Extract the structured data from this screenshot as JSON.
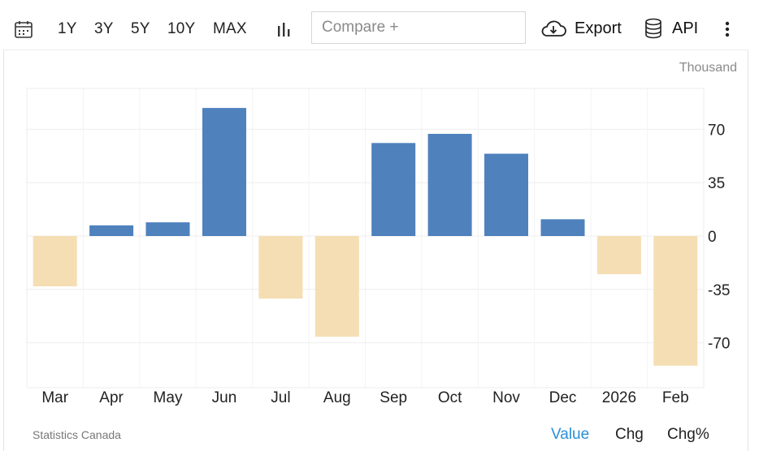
{
  "toolbar": {
    "calendar_icon": "calendar-icon",
    "ranges": [
      "1Y",
      "3Y",
      "5Y",
      "10Y",
      "MAX"
    ],
    "chart_type_icon": "bar-chart-icon",
    "compare_placeholder": "Compare +",
    "export_label": "Export",
    "export_icon": "cloud-download-icon",
    "api_label": "API",
    "api_icon": "database-icon",
    "more_icon": "more-vertical-icon"
  },
  "chart_data": {
    "type": "bar",
    "categories": [
      "Mar",
      "Apr",
      "May",
      "Jun",
      "Jul",
      "Aug",
      "Sep",
      "Oct",
      "Nov",
      "Dec",
      "2026",
      "Feb"
    ],
    "values": [
      -33,
      7,
      9,
      84,
      -41,
      -66,
      61,
      67,
      54,
      11,
      -25,
      -85
    ],
    "unit_label": "Thousand",
    "yticks": [
      70,
      35,
      0,
      -35,
      -70
    ],
    "ylim": [
      -100,
      96
    ],
    "positive_color": "#4f81bd",
    "negative_color": "#f5deb3",
    "grid": true
  },
  "footer": {
    "source": "Statistics Canada",
    "modes": [
      "Value",
      "Chg",
      "Chg%"
    ],
    "active_mode": "Value",
    "active_color": "#2a8fd6"
  }
}
